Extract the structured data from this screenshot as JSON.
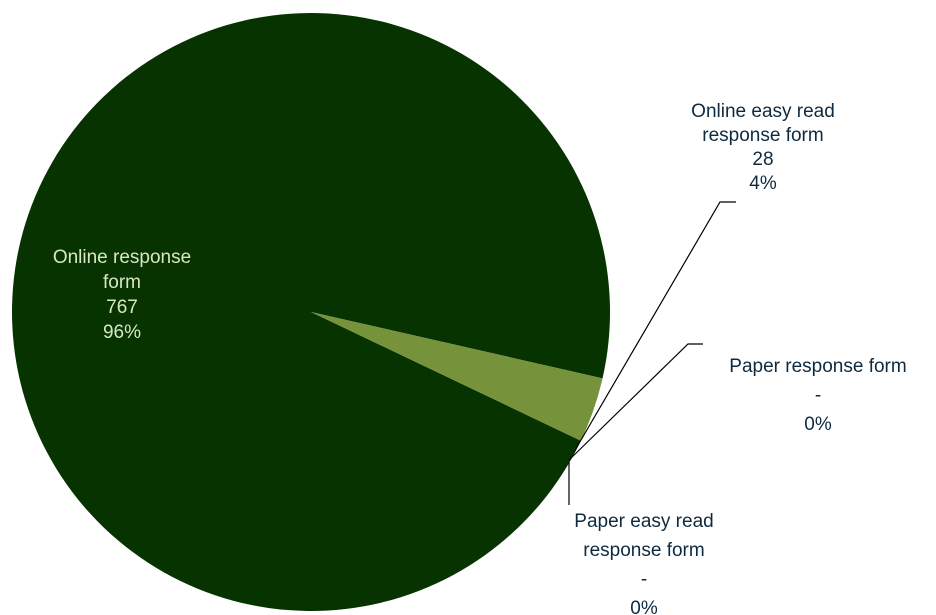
{
  "chart_data": {
    "type": "pie",
    "slices": [
      {
        "label_lines": [
          "Online response",
          "form"
        ],
        "value_text": "767",
        "percent_text": "96%",
        "value": 767,
        "color": "#063300"
      },
      {
        "label_lines": [
          "Online easy read",
          "response form"
        ],
        "value_text": "28",
        "percent_text": "4%",
        "value": 28,
        "color": "#76933c"
      },
      {
        "label_lines": [
          "Paper response form"
        ],
        "value_text": "-",
        "percent_text": "0%",
        "value": 0,
        "color": "#4f6228"
      },
      {
        "label_lines": [
          "Paper easy read",
          "response form"
        ],
        "value_text": "-",
        "percent_text": "0%",
        "value": 0,
        "color": "#9bbb59"
      }
    ]
  }
}
